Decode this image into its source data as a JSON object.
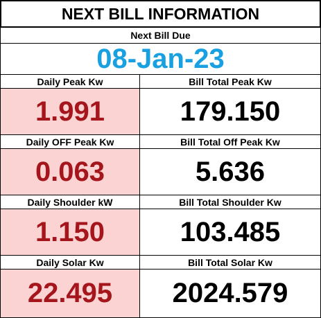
{
  "title": "NEXT BILL INFORMATION",
  "next_bill": {
    "label": "Next Bill Due",
    "date": "08-Jan-23"
  },
  "rows": [
    {
      "left_label": "Daily Peak Kw",
      "left_value": "1.991",
      "right_label": "Bill Total Peak Kw",
      "right_value": "179.150"
    },
    {
      "left_label": "Daily OFF Peak Kw",
      "left_value": "0.063",
      "right_label": "Bill Total Off Peak Kw",
      "right_value": "5.636"
    },
    {
      "left_label": "Daily Shoulder kW",
      "left_value": "1.150",
      "right_label": "Bill Total Shoulder Kw",
      "right_value": "103.485"
    },
    {
      "left_label": "Daily Solar Kw",
      "left_value": "22.495",
      "right_label": "Bill Total Solar Kw",
      "right_value": "2024.579"
    }
  ],
  "colors": {
    "date": "#18a0e0",
    "daily_value_text": "#a5161c",
    "daily_value_background": "#fbd3d3"
  }
}
